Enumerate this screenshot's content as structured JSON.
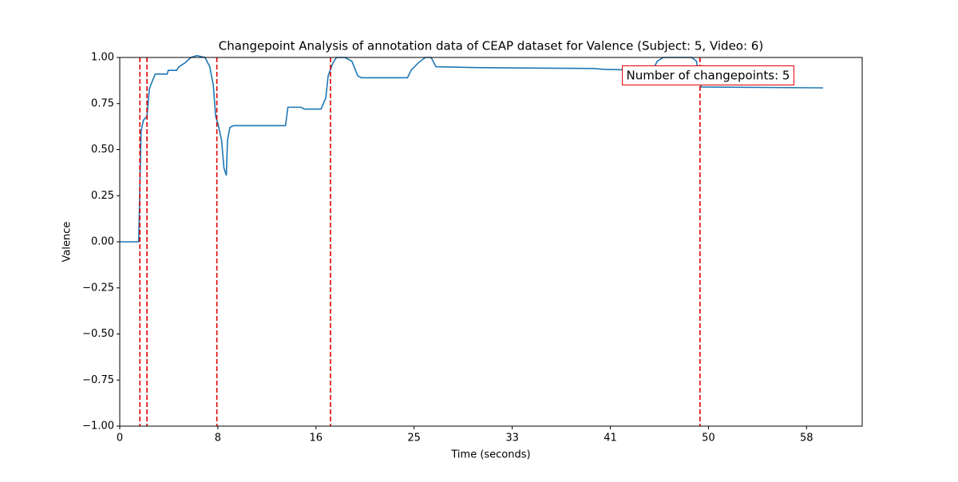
{
  "chart_data": {
    "type": "line",
    "title": "Changepoint Analysis of annotation data of CEAP dataset for Valence (Subject: 5, Video: 6)",
    "x_label": "Time (seconds)",
    "y_label": "Valence",
    "annotation": "Number of changepoints: 5",
    "annotation_color": "#e00000",
    "xlim": [
      0,
      62.7
    ],
    "ylim": [
      -1.0,
      1.0
    ],
    "xticks": [
      {
        "value": 0,
        "label": "0"
      },
      {
        "value": 8.286,
        "label": "8"
      },
      {
        "value": 16.571,
        "label": "16"
      },
      {
        "value": 24.857,
        "label": "25"
      },
      {
        "value": 33.143,
        "label": "33"
      },
      {
        "value": 41.429,
        "label": "41"
      },
      {
        "value": 49.714,
        "label": "50"
      },
      {
        "value": 58,
        "label": "58"
      }
    ],
    "yticks": [
      {
        "value": -1.0,
        "label": "−1.00"
      },
      {
        "value": -0.75,
        "label": "−0.75"
      },
      {
        "value": -0.5,
        "label": "−0.50"
      },
      {
        "value": -0.25,
        "label": "−0.25"
      },
      {
        "value": 0.0,
        "label": "0.00"
      },
      {
        "value": 0.25,
        "label": "0.25"
      },
      {
        "value": 0.5,
        "label": "0.50"
      },
      {
        "value": 0.75,
        "label": "0.75"
      },
      {
        "value": 1.0,
        "label": "1.00"
      }
    ],
    "x": [
      0,
      1.6,
      1.7,
      1.8,
      2.0,
      2.3,
      2.5,
      2.8,
      3.0,
      4.0,
      4.1,
      4.8,
      5.0,
      5.5,
      6.0,
      6.5,
      7.2,
      7.6,
      7.9,
      8.1,
      8.3,
      8.6,
      8.8,
      9.0,
      9.1,
      9.3,
      9.6,
      14.0,
      14.2,
      15.3,
      15.6,
      17.0,
      17.4,
      17.6,
      18.0,
      18.3,
      19.0,
      19.6,
      20.1,
      20.4,
      24.3,
      24.6,
      25.2,
      25.8,
      26.3,
      26.7,
      30,
      40,
      41,
      45,
      45.4,
      45.9,
      48.3,
      48.7,
      49.1,
      59.4
    ],
    "series": [
      {
        "color": "#1f77b4",
        "values": [
          0,
          0,
          0.3,
          0.6,
          0.66,
          0.68,
          0.83,
          0.88,
          0.91,
          0.91,
          0.93,
          0.93,
          0.95,
          0.97,
          1.0,
          1.01,
          1.0,
          0.95,
          0.85,
          0.68,
          0.64,
          0.55,
          0.4,
          0.36,
          0.55,
          0.62,
          0.63,
          0.63,
          0.73,
          0.73,
          0.72,
          0.72,
          0.78,
          0.9,
          0.97,
          1.0,
          1.0,
          0.98,
          0.9,
          0.89,
          0.89,
          0.93,
          0.97,
          1.0,
          1.0,
          0.95,
          0.945,
          0.94,
          0.935,
          0.93,
          0.98,
          1.0,
          1.0,
          0.98,
          0.84,
          0.835
        ]
      }
    ],
    "changepoints": [
      1.7,
      2.3,
      8.2,
      17.8,
      49.0
    ],
    "changepoint_color": "#e00000"
  }
}
